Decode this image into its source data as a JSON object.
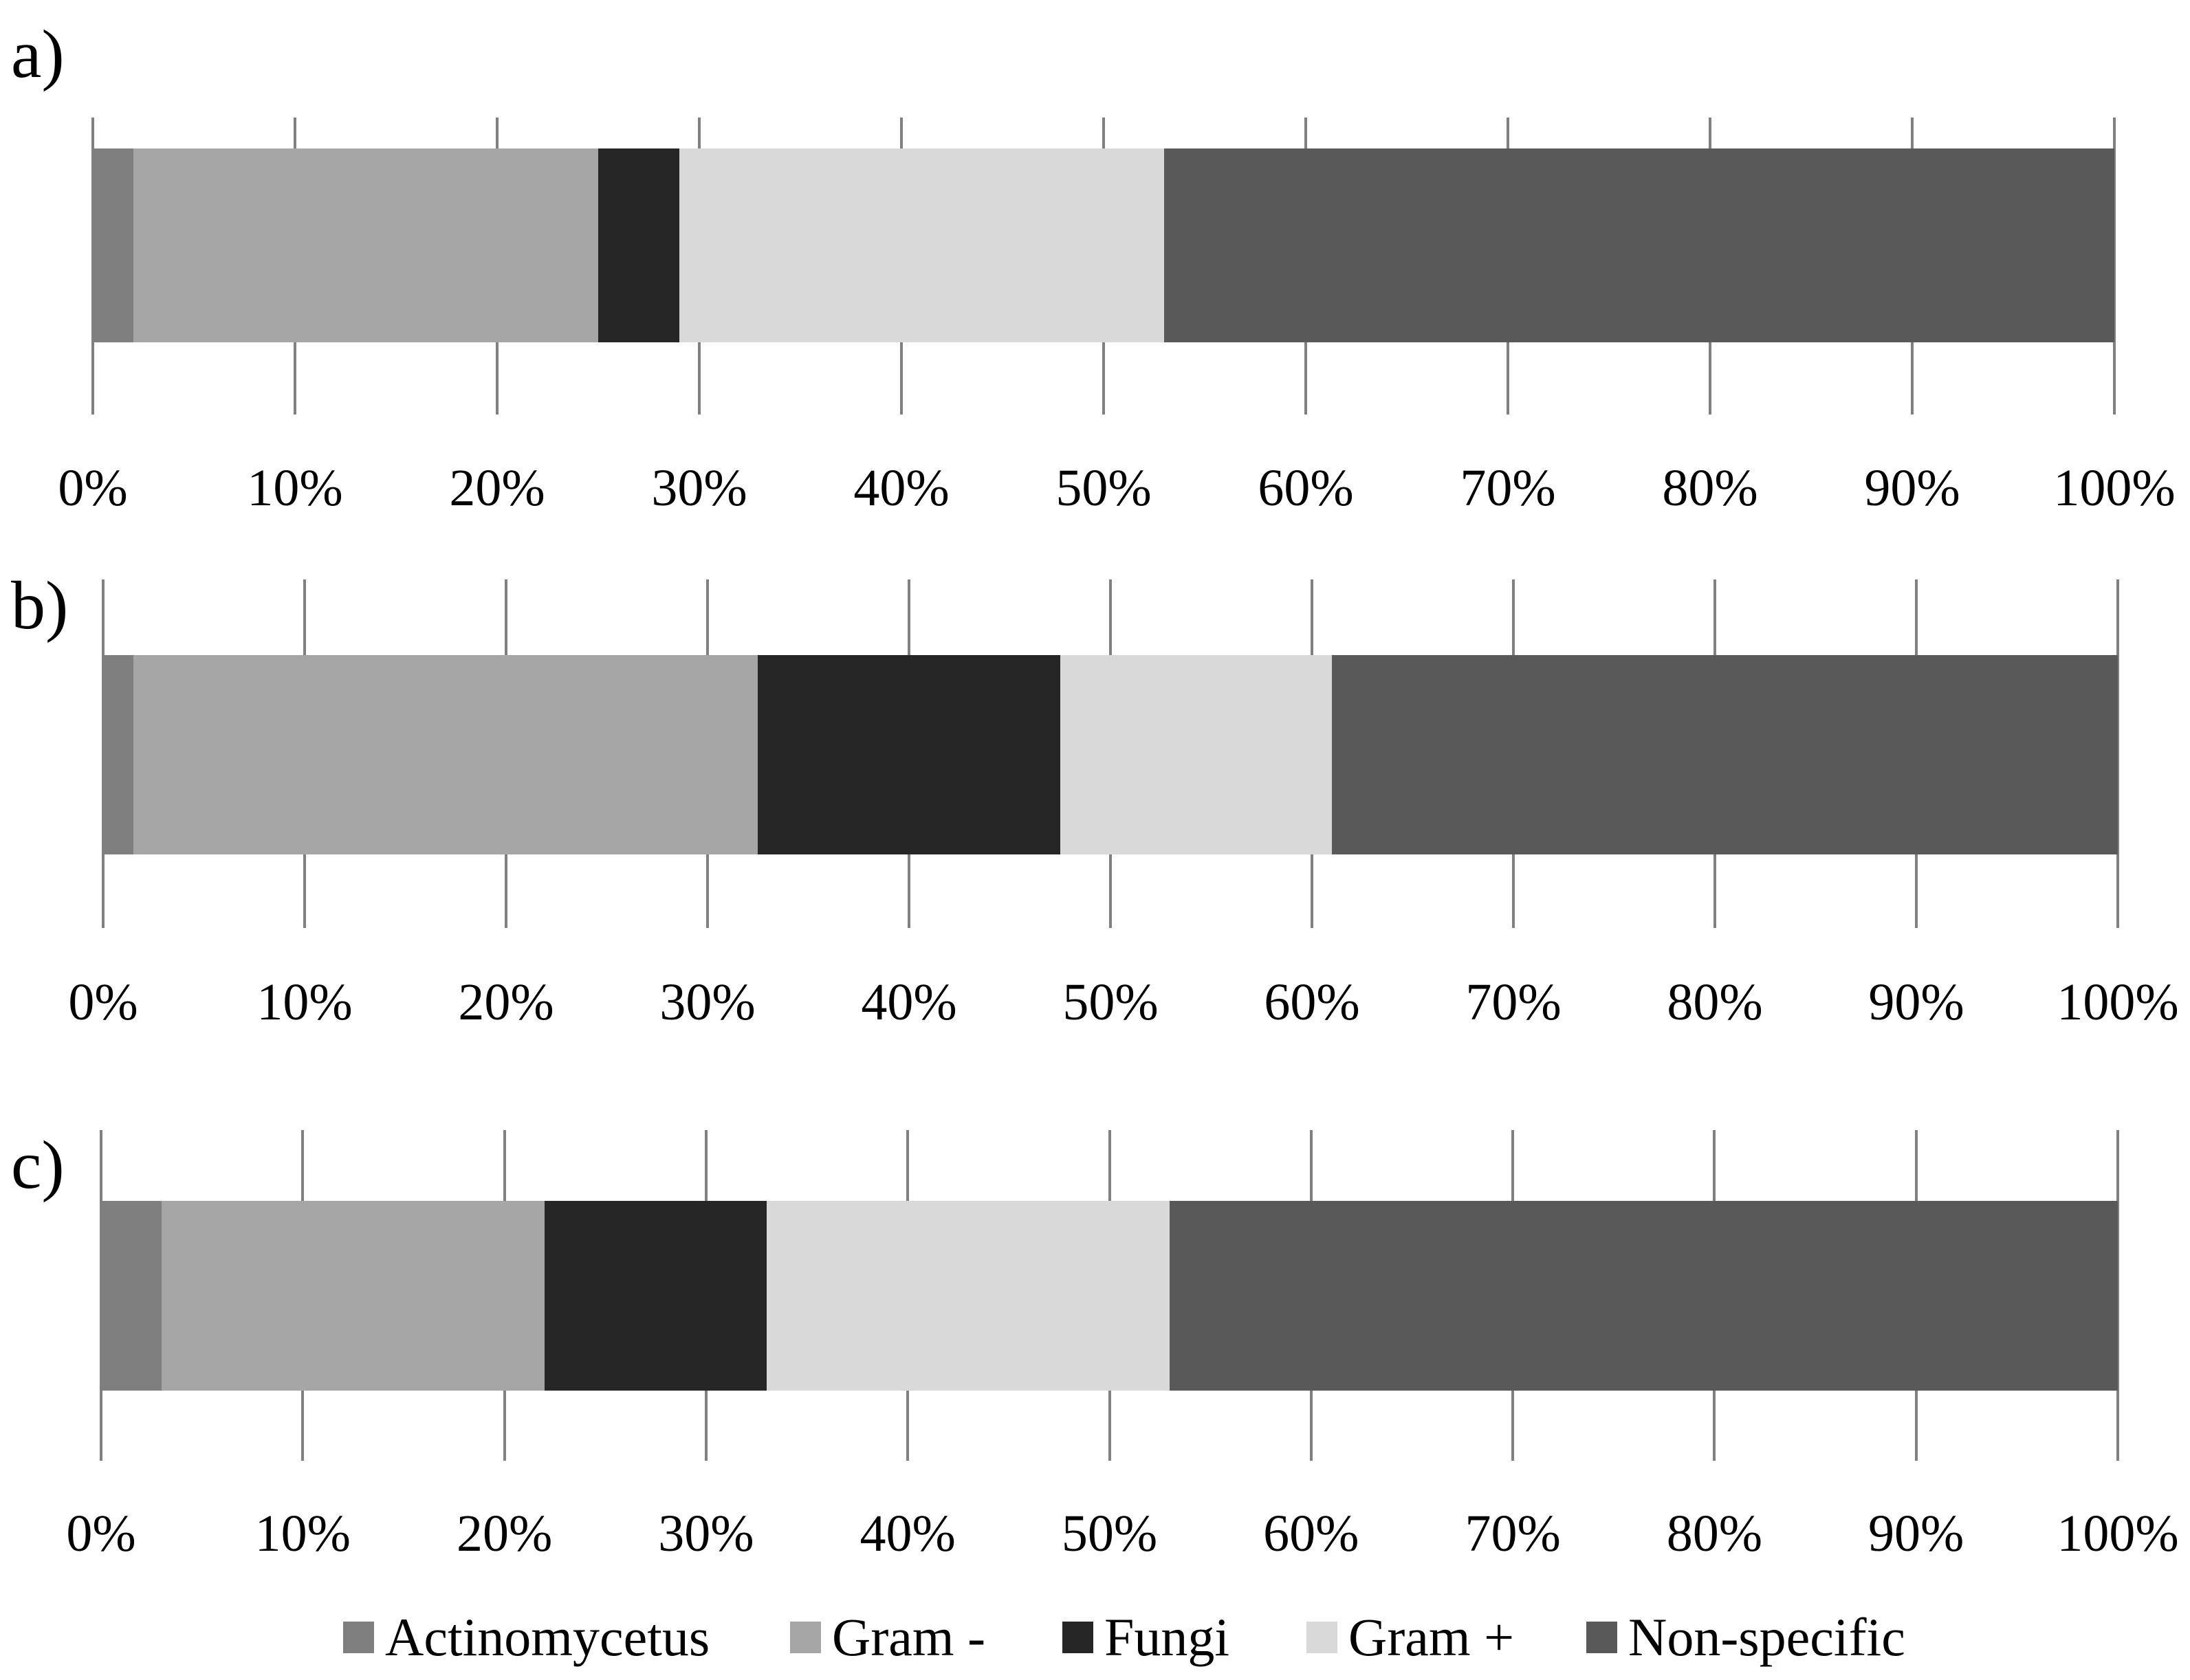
{
  "axis": {
    "tick_labels": [
      "0%",
      "10%",
      "20%",
      "30%",
      "40%",
      "50%",
      "60%",
      "70%",
      "80%",
      "90%",
      "100%"
    ]
  },
  "legend": {
    "items": [
      {
        "label": "Actinomycetus",
        "color": "#7F7F7F"
      },
      {
        "label": "Gram -",
        "color": "#A6A6A6"
      },
      {
        "label": "Fungi",
        "color": "#262626"
      },
      {
        "label": "Gram +",
        "color": "#D9D9D9"
      },
      {
        "label": "Non-specific",
        "color": "#595959"
      }
    ]
  },
  "chart_data": [
    {
      "id": "a",
      "label": "a)",
      "type": "bar",
      "orientation": "horizontal",
      "stacked": true,
      "units": "percent",
      "xlim": [
        0,
        100
      ],
      "x_tick_labels": [
        "0%",
        "10%",
        "20%",
        "30%",
        "40%",
        "50%",
        "60%",
        "70%",
        "80%",
        "90%",
        "100%"
      ],
      "categories": [
        "Actinomycetus",
        "Gram -",
        "Fungi",
        "Gram +",
        "Non-specific"
      ],
      "values": [
        2,
        23,
        4,
        24,
        47
      ]
    },
    {
      "id": "b",
      "label": "b)",
      "type": "bar",
      "orientation": "horizontal",
      "stacked": true,
      "units": "percent",
      "xlim": [
        0,
        100
      ],
      "x_tick_labels": [
        "0%",
        "10%",
        "20%",
        "30%",
        "40%",
        "50%",
        "60%",
        "70%",
        "80%",
        "90%",
        "100%"
      ],
      "categories": [
        "Actinomycetus",
        "Gram -",
        "Fungi",
        "Gram +",
        "Non-specific"
      ],
      "values": [
        1.5,
        31,
        15,
        13.5,
        39
      ]
    },
    {
      "id": "c",
      "label": "c)",
      "type": "bar",
      "orientation": "horizontal",
      "stacked": true,
      "units": "percent",
      "xlim": [
        0,
        100
      ],
      "x_tick_labels": [
        "0%",
        "10%",
        "20%",
        "30%",
        "40%",
        "50%",
        "60%",
        "70%",
        "80%",
        "90%",
        "100%"
      ],
      "categories": [
        "Actinomycetus",
        "Gram -",
        "Fungi",
        "Gram +",
        "Non-specific"
      ],
      "values": [
        3,
        19,
        11,
        20,
        47
      ]
    }
  ]
}
